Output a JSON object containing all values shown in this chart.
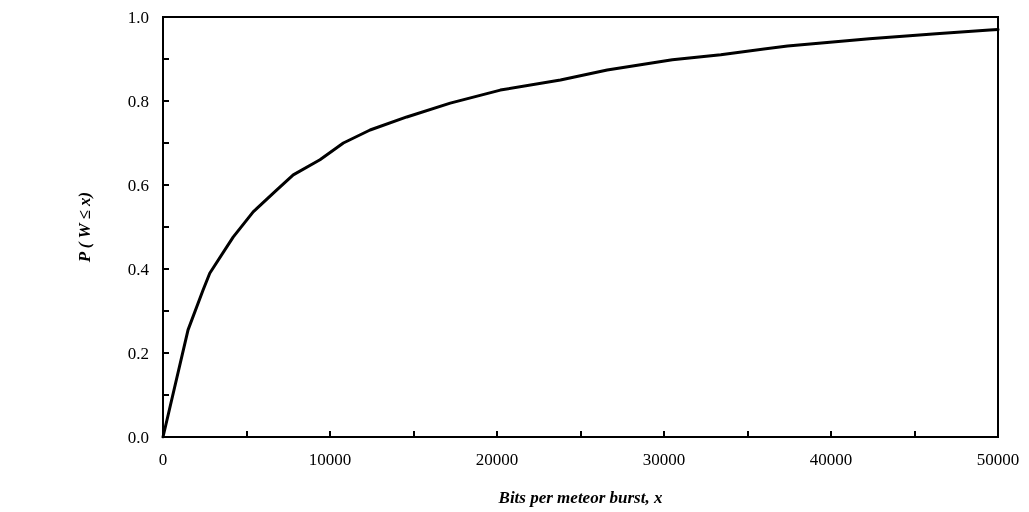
{
  "chart_data": {
    "type": "line",
    "xlabel": "Bits per meteor burst, x",
    "ylabel": "P ( W ≤ x)",
    "x": [
      0,
      1500,
      2400,
      2800,
      4200,
      5400,
      6800,
      7800,
      9400,
      10800,
      12400,
      14600,
      17200,
      20200,
      23800,
      26600,
      30500,
      33400,
      37400,
      42300,
      46300,
      49500,
      50000
    ],
    "series": [
      {
        "color": "#000000",
        "values": [
          0.0,
          0.255,
          0.35,
          0.39,
          0.476,
          0.536,
          0.588,
          0.624,
          0.66,
          0.7,
          0.731,
          0.762,
          0.795,
          0.826,
          0.85,
          0.874,
          0.898,
          0.91,
          0.931,
          0.948,
          0.96,
          0.969,
          0.97
        ]
      }
    ],
    "xlim": [
      0,
      50000
    ],
    "xticks": [
      0,
      {
        "value": 5000,
        "label": null
      },
      10000,
      {
        "value": 15000,
        "label": null
      },
      20000,
      {
        "value": 25000,
        "label": null
      },
      30000,
      {
        "value": 35000,
        "label": null
      },
      40000,
      {
        "value": 45000,
        "label": null
      },
      50000
    ],
    "ylim": [
      0,
      1
    ],
    "yticks": [
      {
        "value": 0,
        "label": "0.0"
      },
      {
        "value": 0.1,
        "label": null
      },
      {
        "value": 0.2,
        "label": "0.2"
      },
      {
        "value": 0.3,
        "label": null
      },
      {
        "value": 0.4,
        "label": "0.4"
      },
      {
        "value": 0.5,
        "label": null
      },
      {
        "value": 0.6,
        "label": "0.6"
      },
      {
        "value": 0.7,
        "label": null
      },
      {
        "value": 0.8,
        "label": "0.8"
      },
      {
        "value": 0.9,
        "label": null
      },
      {
        "value": 1,
        "label": "1.0"
      }
    ],
    "grid": false,
    "marker": "none",
    "line_style": "solid"
  }
}
